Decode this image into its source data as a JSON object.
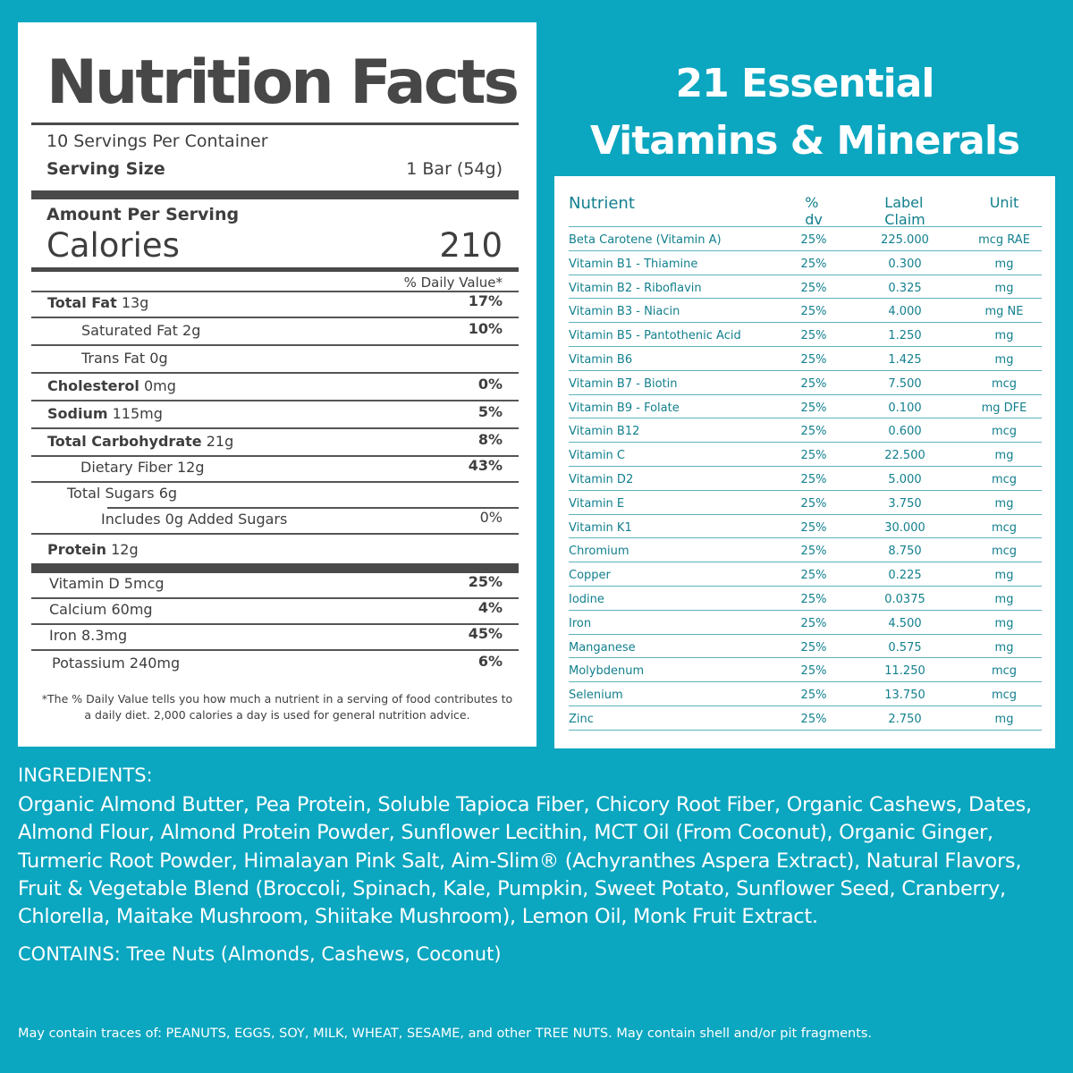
{
  "nutrition_facts": {
    "title": "Nutrition Facts",
    "servings": "10 Servings Per Container",
    "serving_size_label": "Serving Size",
    "serving_size": "1 Bar (54g)",
    "amount_per_serving": "Amount Per Serving",
    "calories_label": "Calories",
    "calories": "210",
    "dv_header": "% Daily Value*",
    "rows": [
      {
        "name": "Total Fat",
        "amount": "13g",
        "dv": "17%"
      },
      {
        "name": "Saturated Fat",
        "amount": "2g",
        "dv": "10%"
      },
      {
        "name": "Trans Fat",
        "amount": "0g"
      },
      {
        "name": "Cholesterol",
        "amount": "0mg",
        "dv": "0%"
      },
      {
        "name": "Sodium",
        "amount": "115mg",
        "dv": "5%"
      },
      {
        "name": "Total Carbohydrate",
        "amount": "21g",
        "dv": "8%"
      },
      {
        "name": "Dietary Fiber",
        "amount": "12g",
        "dv": "43%"
      },
      {
        "name": "Total Sugars",
        "amount": "6g"
      },
      {
        "name": "Includes 0g Added Sugars",
        "dv": "0%"
      },
      {
        "name": "Protein",
        "amount": "12g"
      }
    ],
    "micros": [
      {
        "name": "Vitamin D",
        "amount": "5mcg",
        "dv": "25%"
      },
      {
        "name": "Calcium",
        "amount": "60mg",
        "dv": "4%"
      },
      {
        "name": "Iron",
        "amount": "8.3mg",
        "dv": "45%"
      },
      {
        "name": "Potassium",
        "amount": "240mg",
        "dv": "6%"
      }
    ],
    "footnote": "*The % Daily Value tells you how much a nutrient in a serving of food contributes to a daily diet. 2,000 calories a day is used for general nutrition advice."
  },
  "vitamins": {
    "title_lines": [
      "21 Essential",
      "Vitamins & Minerals"
    ],
    "header": [
      "Nutrient",
      "% dv",
      "Label Claim",
      "Unit"
    ],
    "rows": [
      [
        "Beta Carotene (Vitamin A)",
        "25%",
        "225.000",
        "mcg RAE"
      ],
      [
        "Vitamin B1 - Thiamine",
        "25%",
        "0.300",
        "mg"
      ],
      [
        "Vitamin B2 - Riboflavin",
        "25%",
        "0.325",
        "mg"
      ],
      [
        "Vitamin B3 - Niacin",
        "25%",
        "4.000",
        "mg NE"
      ],
      [
        "Vitamin B5 - Pantothenic Acid",
        "25%",
        "1.250",
        "mg"
      ],
      [
        "Vitamin B6",
        "25%",
        "1.425",
        "mg"
      ],
      [
        "Vitamin B7 - Biotin",
        "25%",
        "7.500",
        "mcg"
      ],
      [
        "Vitamin B9 - Folate",
        "25%",
        "0.100",
        "mg DFE"
      ],
      [
        "Vitamin B12",
        "25%",
        "0.600",
        "mcg"
      ],
      [
        "Vitamin C",
        "25%",
        "22.500",
        "mg"
      ],
      [
        "Vitamin D2",
        "25%",
        "5.000",
        "mcg"
      ],
      [
        "Vitamin E",
        "25%",
        "3.750",
        "mg"
      ],
      [
        "Vitamin K1",
        "25%",
        "30.000",
        "mcg"
      ],
      [
        "Chromium",
        "25%",
        "8.750",
        "mcg"
      ],
      [
        "Copper",
        "25%",
        "0.225",
        "mg"
      ],
      [
        "Iodine",
        "25%",
        "0.0375",
        "mg"
      ],
      [
        "Iron",
        "25%",
        "4.500",
        "mg"
      ],
      [
        "Manganese",
        "25%",
        "0.575",
        "mg"
      ],
      [
        "Molybdenum",
        "25%",
        "11.250",
        "mcg"
      ],
      [
        "Selenium",
        "25%",
        "13.750",
        "mcg"
      ],
      [
        "Zinc",
        "25%",
        "2.750",
        "mg"
      ]
    ]
  },
  "ingredients": {
    "heading": "INGREDIENTS:",
    "text": "Organic Almond Butter, Pea Protein, Soluble Tapioca Fiber, Chicory Root Fiber, Organic Cashews, Dates, Almond Flour, Almond Protein Powder, Sunflower Lecithin, MCT Oil (From Coconut), Organic Ginger, Turmeric Root Powder, Himalayan Pink Salt, Aim-Slim® (Achyranthes Aspera Extract), Natural Flavors, Fruit & Vegetable Blend (Broccoli, Spinach, Kale, Pumpkin, Sweet Potato, Sunflower Seed, Cranberry, Chlorella, Maitake Mushroom, Shiitake Mushroom), Lemon Oil, Monk Fruit Extract.",
    "contains_label": "CONTAINS:",
    "contains": "Tree Nuts (Almonds, Cashews, Coconut)",
    "traces": "May contain traces of: PEANUTS, EGGS, SOY, MILK, WHEAT, SESAME, and other TREE NUTS. May contain shell and/or pit fragments."
  }
}
